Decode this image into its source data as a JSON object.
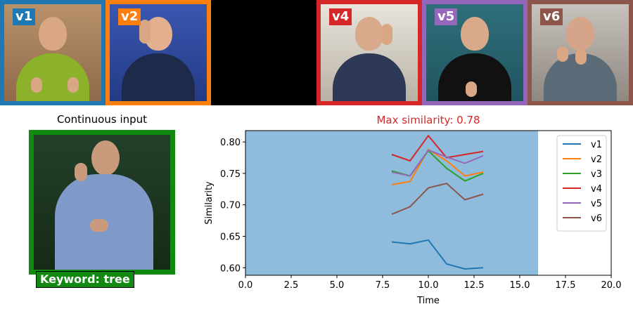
{
  "videos": [
    {
      "label": "v1",
      "color": "#1f77b4"
    },
    {
      "label": "v2",
      "color": "#ff7f0e"
    },
    {
      "label": "v4",
      "color": "#d62728"
    },
    {
      "label": "v5",
      "color": "#9467bd"
    },
    {
      "label": "v6",
      "color": "#8c564b"
    }
  ],
  "continuous_input": {
    "title": "Continuous input",
    "keyword": "Keyword: tree",
    "frame_color": "#108a10"
  },
  "chart_data": {
    "type": "line",
    "title": "Max similarity: 0.78",
    "title_color": "#d62728",
    "xlabel": "Time",
    "ylabel": "Similarity",
    "xlim": [
      0,
      20
    ],
    "ylim": [
      0.588,
      0.818
    ],
    "xticks": [
      "0.0",
      "2.5",
      "5.0",
      "7.5",
      "10.0",
      "12.5",
      "15.0",
      "17.5",
      "20.0"
    ],
    "yticks": [
      "0.60",
      "0.65",
      "0.70",
      "0.75",
      "0.80"
    ],
    "shaded_region": {
      "x_start": 0,
      "x_end": 16,
      "color": "#8fbcdc"
    },
    "legend_position": "top-right",
    "grid": false,
    "x": [
      8,
      9,
      10,
      11,
      12,
      13
    ],
    "series": [
      {
        "name": "v1",
        "color": "#1f77b4",
        "values": [
          0.641,
          0.638,
          0.644,
          0.606,
          0.598,
          0.6
        ]
      },
      {
        "name": "v2",
        "color": "#ff7f0e",
        "values": [
          0.732,
          0.737,
          0.788,
          0.77,
          0.746,
          0.752
        ]
      },
      {
        "name": "v3",
        "color": "#2ca02c",
        "values": [
          0.754,
          0.746,
          0.786,
          0.758,
          0.738,
          0.75
        ]
      },
      {
        "name": "v4",
        "color": "#d62728",
        "values": [
          0.78,
          0.77,
          0.81,
          0.775,
          0.78,
          0.785
        ]
      },
      {
        "name": "v5",
        "color": "#9467bd",
        "values": [
          0.752,
          0.746,
          0.787,
          0.776,
          0.766,
          0.778
        ]
      },
      {
        "name": "v6",
        "color": "#8c564b",
        "values": [
          0.685,
          0.697,
          0.727,
          0.734,
          0.708,
          0.717
        ]
      }
    ]
  }
}
